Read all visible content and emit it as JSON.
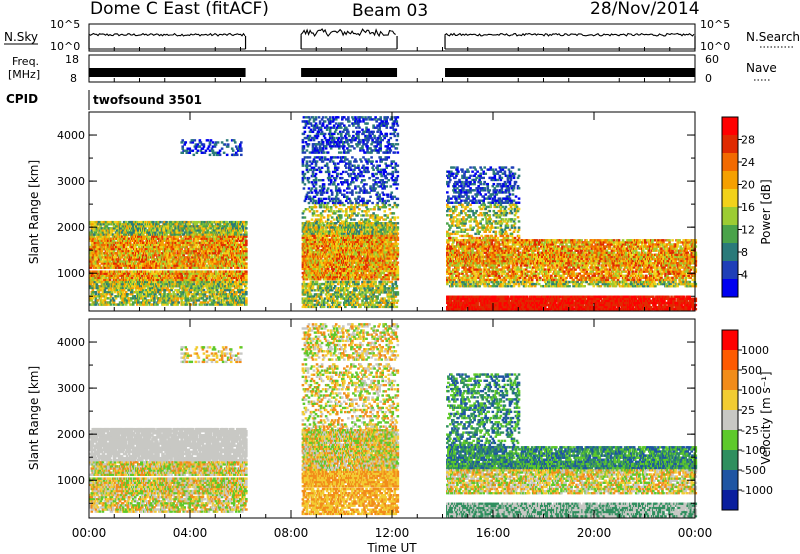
{
  "header": {
    "station": "Dome C East (fitACF)",
    "beam": "Beam 03",
    "date": "28/Nov/2014"
  },
  "panels": {
    "nsky": {
      "label": "N.Sky",
      "ticks": [
        "10^5",
        "10^0"
      ],
      "right_label": "N.Search",
      "right_ticks": [
        "10^5",
        "10^0"
      ]
    },
    "freq": {
      "label_lines": [
        "Freq.",
        "[MHz]"
      ],
      "ticks": [
        "18",
        "8"
      ],
      "right_label": "Nave",
      "right_ticks": [
        "60",
        "0"
      ]
    },
    "cpid": {
      "label": "CPID",
      "program": "twofsound 3501"
    }
  },
  "chart_data": [
    {
      "type": "heatmap",
      "name": "power",
      "xlabel": "",
      "ylabel": "Slant Range [km]",
      "xlim": [
        0,
        24
      ],
      "ylim": [
        180,
        4500
      ],
      "yticks": [
        1000,
        2000,
        3000,
        4000
      ],
      "colorbar": {
        "label": "Power [dB]",
        "min": 0,
        "max": 32,
        "ticks": [
          "28",
          "24",
          "20",
          "16",
          "12",
          "8",
          "4"
        ],
        "colors": [
          "#0000f0",
          "#1f3fb8",
          "#2a7a7a",
          "#4aa34a",
          "#9ccc33",
          "#f2d21a",
          "#f5a000",
          "#f26a00",
          "#e02a00",
          "#ff0000"
        ]
      },
      "data_gaps_utc": [
        [
          6.2,
          8.4
        ],
        [
          12.2,
          14.1
        ]
      ]
    },
    {
      "type": "heatmap",
      "name": "velocity",
      "xlabel": "Time UT",
      "ylabel": "Slant Range [km]",
      "xlim": [
        0,
        24
      ],
      "ylim": [
        180,
        4500
      ],
      "yticks": [
        1000,
        2000,
        3000,
        4000
      ],
      "xticks": [
        "00:00",
        "04:00",
        "08:00",
        "12:00",
        "16:00",
        "20:00",
        "00:00"
      ],
      "colorbar": {
        "label": "Velocity [m s⁻¹]",
        "ticks": [
          "1000",
          "500",
          "100",
          "25",
          "-25",
          "-100",
          "-500",
          "-1000"
        ],
        "colors": [
          "#0a1f9e",
          "#1f55a3",
          "#2f8f5f",
          "#5ec92b",
          "#c8c8c4",
          "#f2cc33",
          "#f28c1a",
          "#ff5a00",
          "#ff0000"
        ]
      },
      "data_gaps_utc": [
        [
          6.2,
          8.4
        ],
        [
          12.2,
          14.1
        ]
      ]
    }
  ]
}
